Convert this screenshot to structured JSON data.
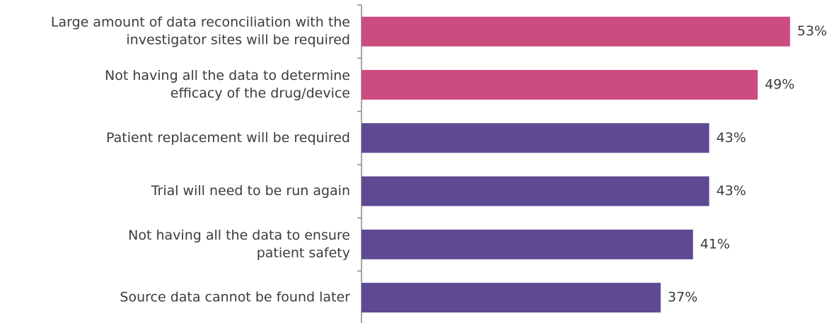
{
  "chart_data": {
    "type": "barh",
    "categories": [
      [
        "Large amount of data reconciliation with the",
        "investigator sites will be required"
      ],
      [
        "Not having all the data to determine",
        "efficacy of the drug/device"
      ],
      [
        "Patient replacement will be required"
      ],
      [
        "Trial will need to be run again"
      ],
      [
        "Not having all the data to ensure",
        "patient safety"
      ],
      [
        "Source data cannot be found later"
      ]
    ],
    "values": [
      53,
      49,
      43,
      43,
      41,
      37
    ],
    "value_labels": [
      "53%",
      "49%",
      "43%",
      "43%",
      "41%",
      "37%"
    ],
    "colors": [
      "#cc4c80",
      "#cc4c80",
      "#5e4a93",
      "#5e4a93",
      "#5e4a93",
      "#5e4a93"
    ]
  }
}
